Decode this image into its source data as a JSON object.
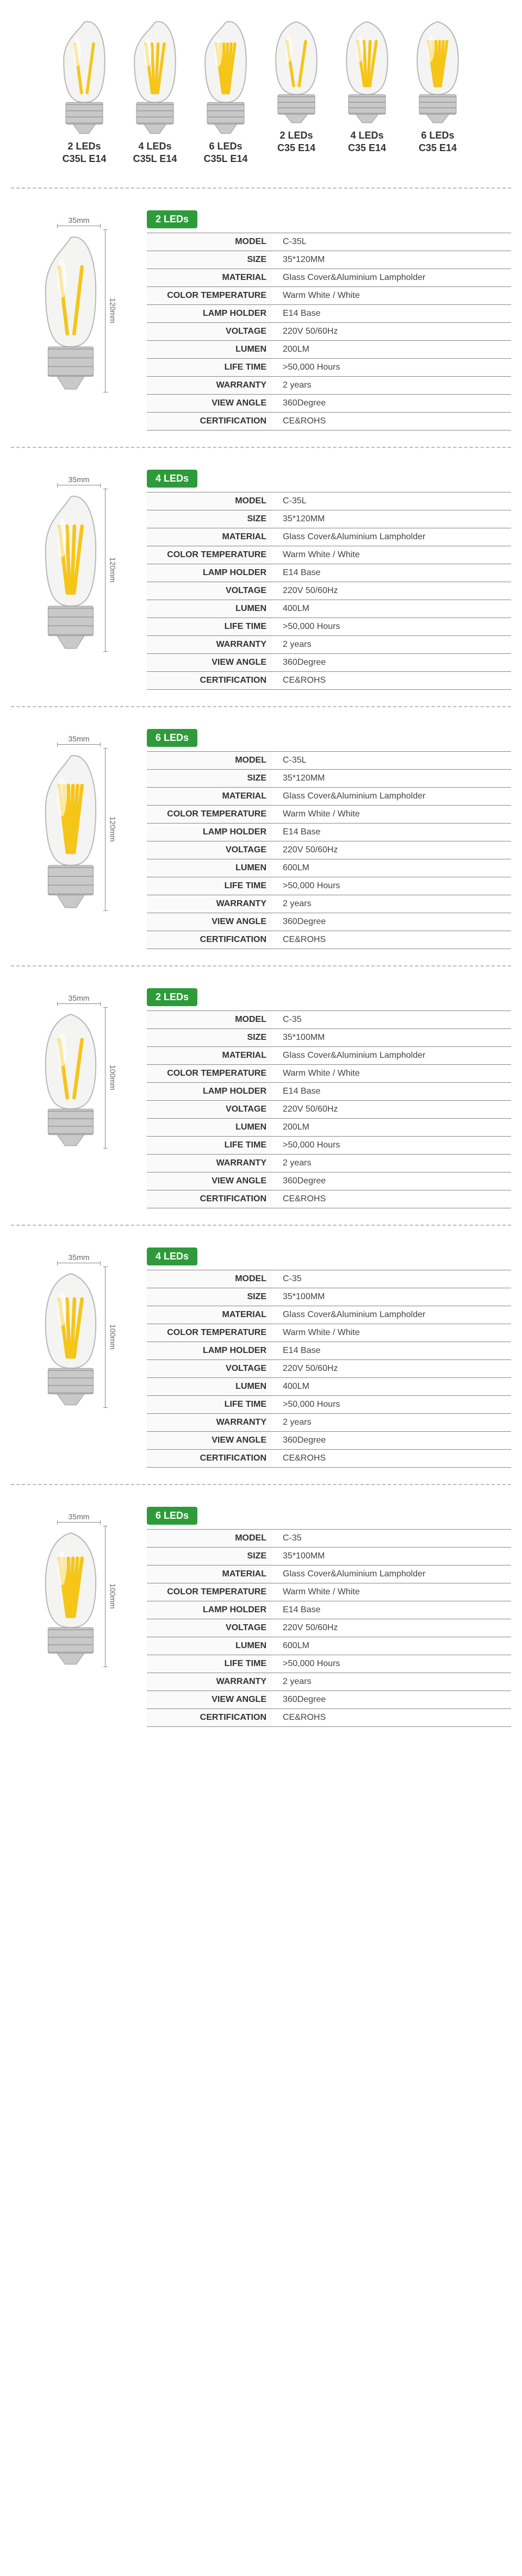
{
  "colors": {
    "badge_bg": "#2e9b3a",
    "filament": "#f5c518",
    "glass_stroke": "#b8b8b8",
    "glass_fill": "#f4f4f2",
    "base_fill": "#c9c9c9",
    "base_stroke": "#9a9a9a"
  },
  "top_row": [
    {
      "line1": "2 LEDs",
      "line2": "C35L  E14",
      "shape": "flame",
      "filaments": 2
    },
    {
      "line1": "4 LEDs",
      "line2": "C35L  E14",
      "shape": "flame",
      "filaments": 4
    },
    {
      "line1": "6 LEDs",
      "line2": "C35L  E14",
      "shape": "flame",
      "filaments": 6
    },
    {
      "line1": "2 LEDs",
      "line2": "C35  E14",
      "shape": "candle",
      "filaments": 2
    },
    {
      "line1": "4 LEDs",
      "line2": "C35  E14",
      "shape": "candle",
      "filaments": 4
    },
    {
      "line1": "6 LEDs",
      "line2": "C35  E14",
      "shape": "candle",
      "filaments": 6
    }
  ],
  "spec_labels": [
    "MODEL",
    "SIZE",
    "MATERIAL",
    "COLOR TEMPERATURE",
    "LAMP HOLDER",
    "VOLTAGE",
    "LUMEN",
    "LIFE TIME",
    "WARRANTY",
    "VIEW ANGLE",
    "CERTIFICATION"
  ],
  "sections": [
    {
      "badge": "2 LEDs",
      "shape": "flame",
      "filaments": 2,
      "dim_w": "35mm",
      "dim_h": "120mm",
      "values": [
        "C-35L",
        "35*120MM",
        "Glass Cover&Aluminium Lampholder",
        "Warm White / White",
        "E14 Base",
        "220V    50/60Hz",
        "200LM",
        ">50,000 Hours",
        "2 years",
        "360Degree",
        "CE&ROHS"
      ]
    },
    {
      "badge": "4 LEDs",
      "shape": "flame",
      "filaments": 4,
      "dim_w": "35mm",
      "dim_h": "120mm",
      "values": [
        "C-35L",
        "35*120MM",
        "Glass Cover&Aluminium Lampholder",
        "Warm White / White",
        "E14 Base",
        "220V    50/60Hz",
        "400LM",
        ">50,000 Hours",
        "2 years",
        "360Degree",
        "CE&ROHS"
      ]
    },
    {
      "badge": "6 LEDs",
      "shape": "flame",
      "filaments": 6,
      "dim_w": "35mm",
      "dim_h": "120mm",
      "values": [
        "C-35L",
        "35*120MM",
        "Glass Cover&Aluminium Lampholder",
        "Warm White / White",
        "E14 Base",
        "220V    50/60Hz",
        "600LM",
        ">50,000 Hours",
        "2 years",
        "360Degree",
        "CE&ROHS"
      ]
    },
    {
      "badge": "2 LEDs",
      "shape": "candle",
      "filaments": 2,
      "dim_w": "35mm",
      "dim_h": "100mm",
      "values": [
        "C-35",
        "35*100MM",
        "Glass Cover&Aluminium Lampholder",
        "Warm White / White",
        "E14 Base",
        "220V    50/60Hz",
        "200LM",
        ">50,000 Hours",
        "2 years",
        "360Degree",
        "CE&ROHS"
      ]
    },
    {
      "badge": "4 LEDs",
      "shape": "candle",
      "filaments": 4,
      "dim_w": "35mm",
      "dim_h": "100mm",
      "values": [
        "C-35",
        "35*100MM",
        "Glass Cover&Aluminium Lampholder",
        "Warm White / White",
        "E14 Base",
        "220V    50/60Hz",
        "400LM",
        ">50,000 Hours",
        "2 years",
        "360Degree",
        "CE&ROHS"
      ]
    },
    {
      "badge": "6 LEDs",
      "shape": "candle",
      "filaments": 6,
      "dim_w": "35mm",
      "dim_h": "100mm",
      "values": [
        "C-35",
        "35*100MM",
        "Glass Cover&Aluminium Lampholder",
        "Warm White / White",
        "E14 Base",
        "220V    50/60Hz",
        "600LM",
        ">50,000 Hours",
        "2 years",
        "360Degree",
        "CE&ROHS"
      ]
    }
  ]
}
